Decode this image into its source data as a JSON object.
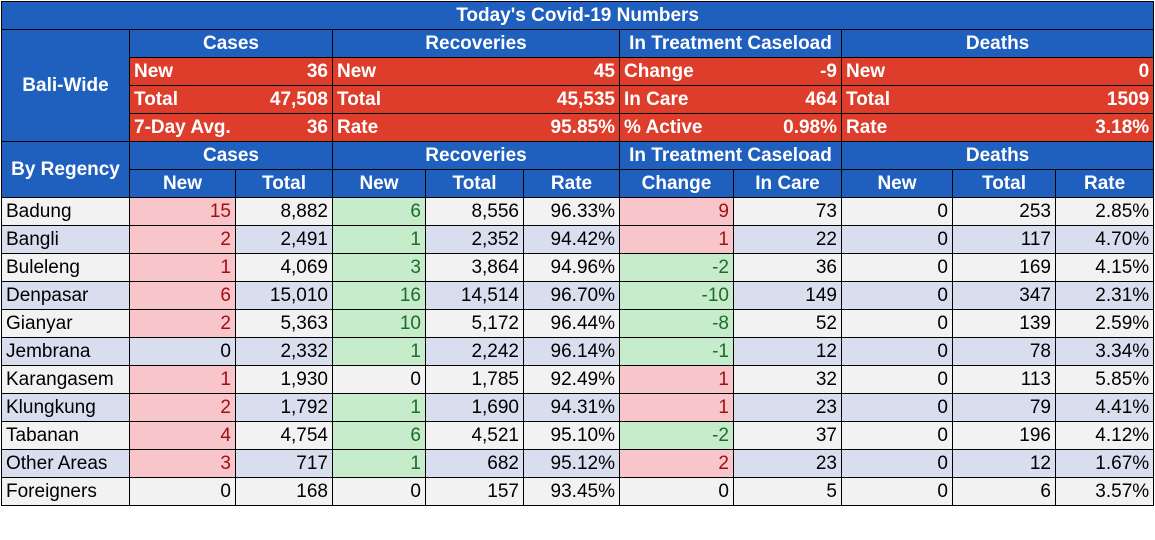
{
  "title": "Today's Covid-19 Numbers",
  "bali_wide": {
    "row_label": "Bali-Wide",
    "groups": [
      "Cases",
      "Recoveries",
      "In Treatment Caseload",
      "Deaths"
    ],
    "rows": [
      [
        [
          "New",
          "36"
        ],
        [
          "New",
          "45"
        ],
        [
          "Change",
          "-9"
        ],
        [
          "New",
          "0"
        ]
      ],
      [
        [
          "Total",
          "47,508"
        ],
        [
          "Total",
          "45,535"
        ],
        [
          "In Care",
          "464"
        ],
        [
          "Total",
          "1509"
        ]
      ],
      [
        [
          "7-Day Avg.",
          "36"
        ],
        [
          "Rate",
          "95.85%"
        ],
        [
          "% Active",
          "0.98%"
        ],
        [
          "Rate",
          "3.18%"
        ]
      ]
    ]
  },
  "regency": {
    "row_label": "By Regency",
    "groups": [
      "Cases",
      "Recoveries",
      "In Treatment Caseload",
      "Deaths"
    ],
    "columns": [
      "New",
      "Total",
      "New",
      "Total",
      "Rate",
      "Change",
      "In Care",
      "New",
      "Total",
      "Rate"
    ],
    "rows": [
      {
        "name": "Badung",
        "cells": [
          "15",
          "8,882",
          "6",
          "8,556",
          "96.33%",
          "9",
          "73",
          "0",
          "253",
          "2.85%"
        ]
      },
      {
        "name": "Bangli",
        "cells": [
          "2",
          "2,491",
          "1",
          "2,352",
          "94.42%",
          "1",
          "22",
          "0",
          "117",
          "4.70%"
        ]
      },
      {
        "name": "Buleleng",
        "cells": [
          "1",
          "4,069",
          "3",
          "3,864",
          "94.96%",
          "-2",
          "36",
          "0",
          "169",
          "4.15%"
        ]
      },
      {
        "name": "Denpasar",
        "cells": [
          "6",
          "15,010",
          "16",
          "14,514",
          "96.70%",
          "-10",
          "149",
          "0",
          "347",
          "2.31%"
        ]
      },
      {
        "name": "Gianyar",
        "cells": [
          "2",
          "5,363",
          "10",
          "5,172",
          "96.44%",
          "-8",
          "52",
          "0",
          "139",
          "2.59%"
        ]
      },
      {
        "name": "Jembrana",
        "cells": [
          "0",
          "2,332",
          "1",
          "2,242",
          "96.14%",
          "-1",
          "12",
          "0",
          "78",
          "3.34%"
        ]
      },
      {
        "name": "Karangasem",
        "cells": [
          "1",
          "1,930",
          "0",
          "1,785",
          "92.49%",
          "1",
          "32",
          "0",
          "113",
          "5.85%"
        ]
      },
      {
        "name": "Klungkung",
        "cells": [
          "2",
          "1,792",
          "1",
          "1,690",
          "94.31%",
          "1",
          "23",
          "0",
          "79",
          "4.41%"
        ]
      },
      {
        "name": "Tabanan",
        "cells": [
          "4",
          "4,754",
          "6",
          "4,521",
          "95.10%",
          "-2",
          "37",
          "0",
          "196",
          "4.12%"
        ]
      },
      {
        "name": "Other Areas",
        "cells": [
          "3",
          "717",
          "1",
          "682",
          "95.12%",
          "2",
          "23",
          "0",
          "12",
          "1.67%"
        ]
      },
      {
        "name": "Foreigners",
        "cells": [
          "0",
          "168",
          "0",
          "157",
          "93.45%",
          "0",
          "5",
          "0",
          "6",
          "3.57%"
        ]
      }
    ]
  },
  "colors": {
    "header_blue": "#1f5fbd",
    "summary_red": "#dd3d2a",
    "increase_pink": "#f8c5cb",
    "decrease_green": "#c6eccb",
    "row_gray": "#f2f2f2",
    "row_blue": "#d9deef"
  }
}
